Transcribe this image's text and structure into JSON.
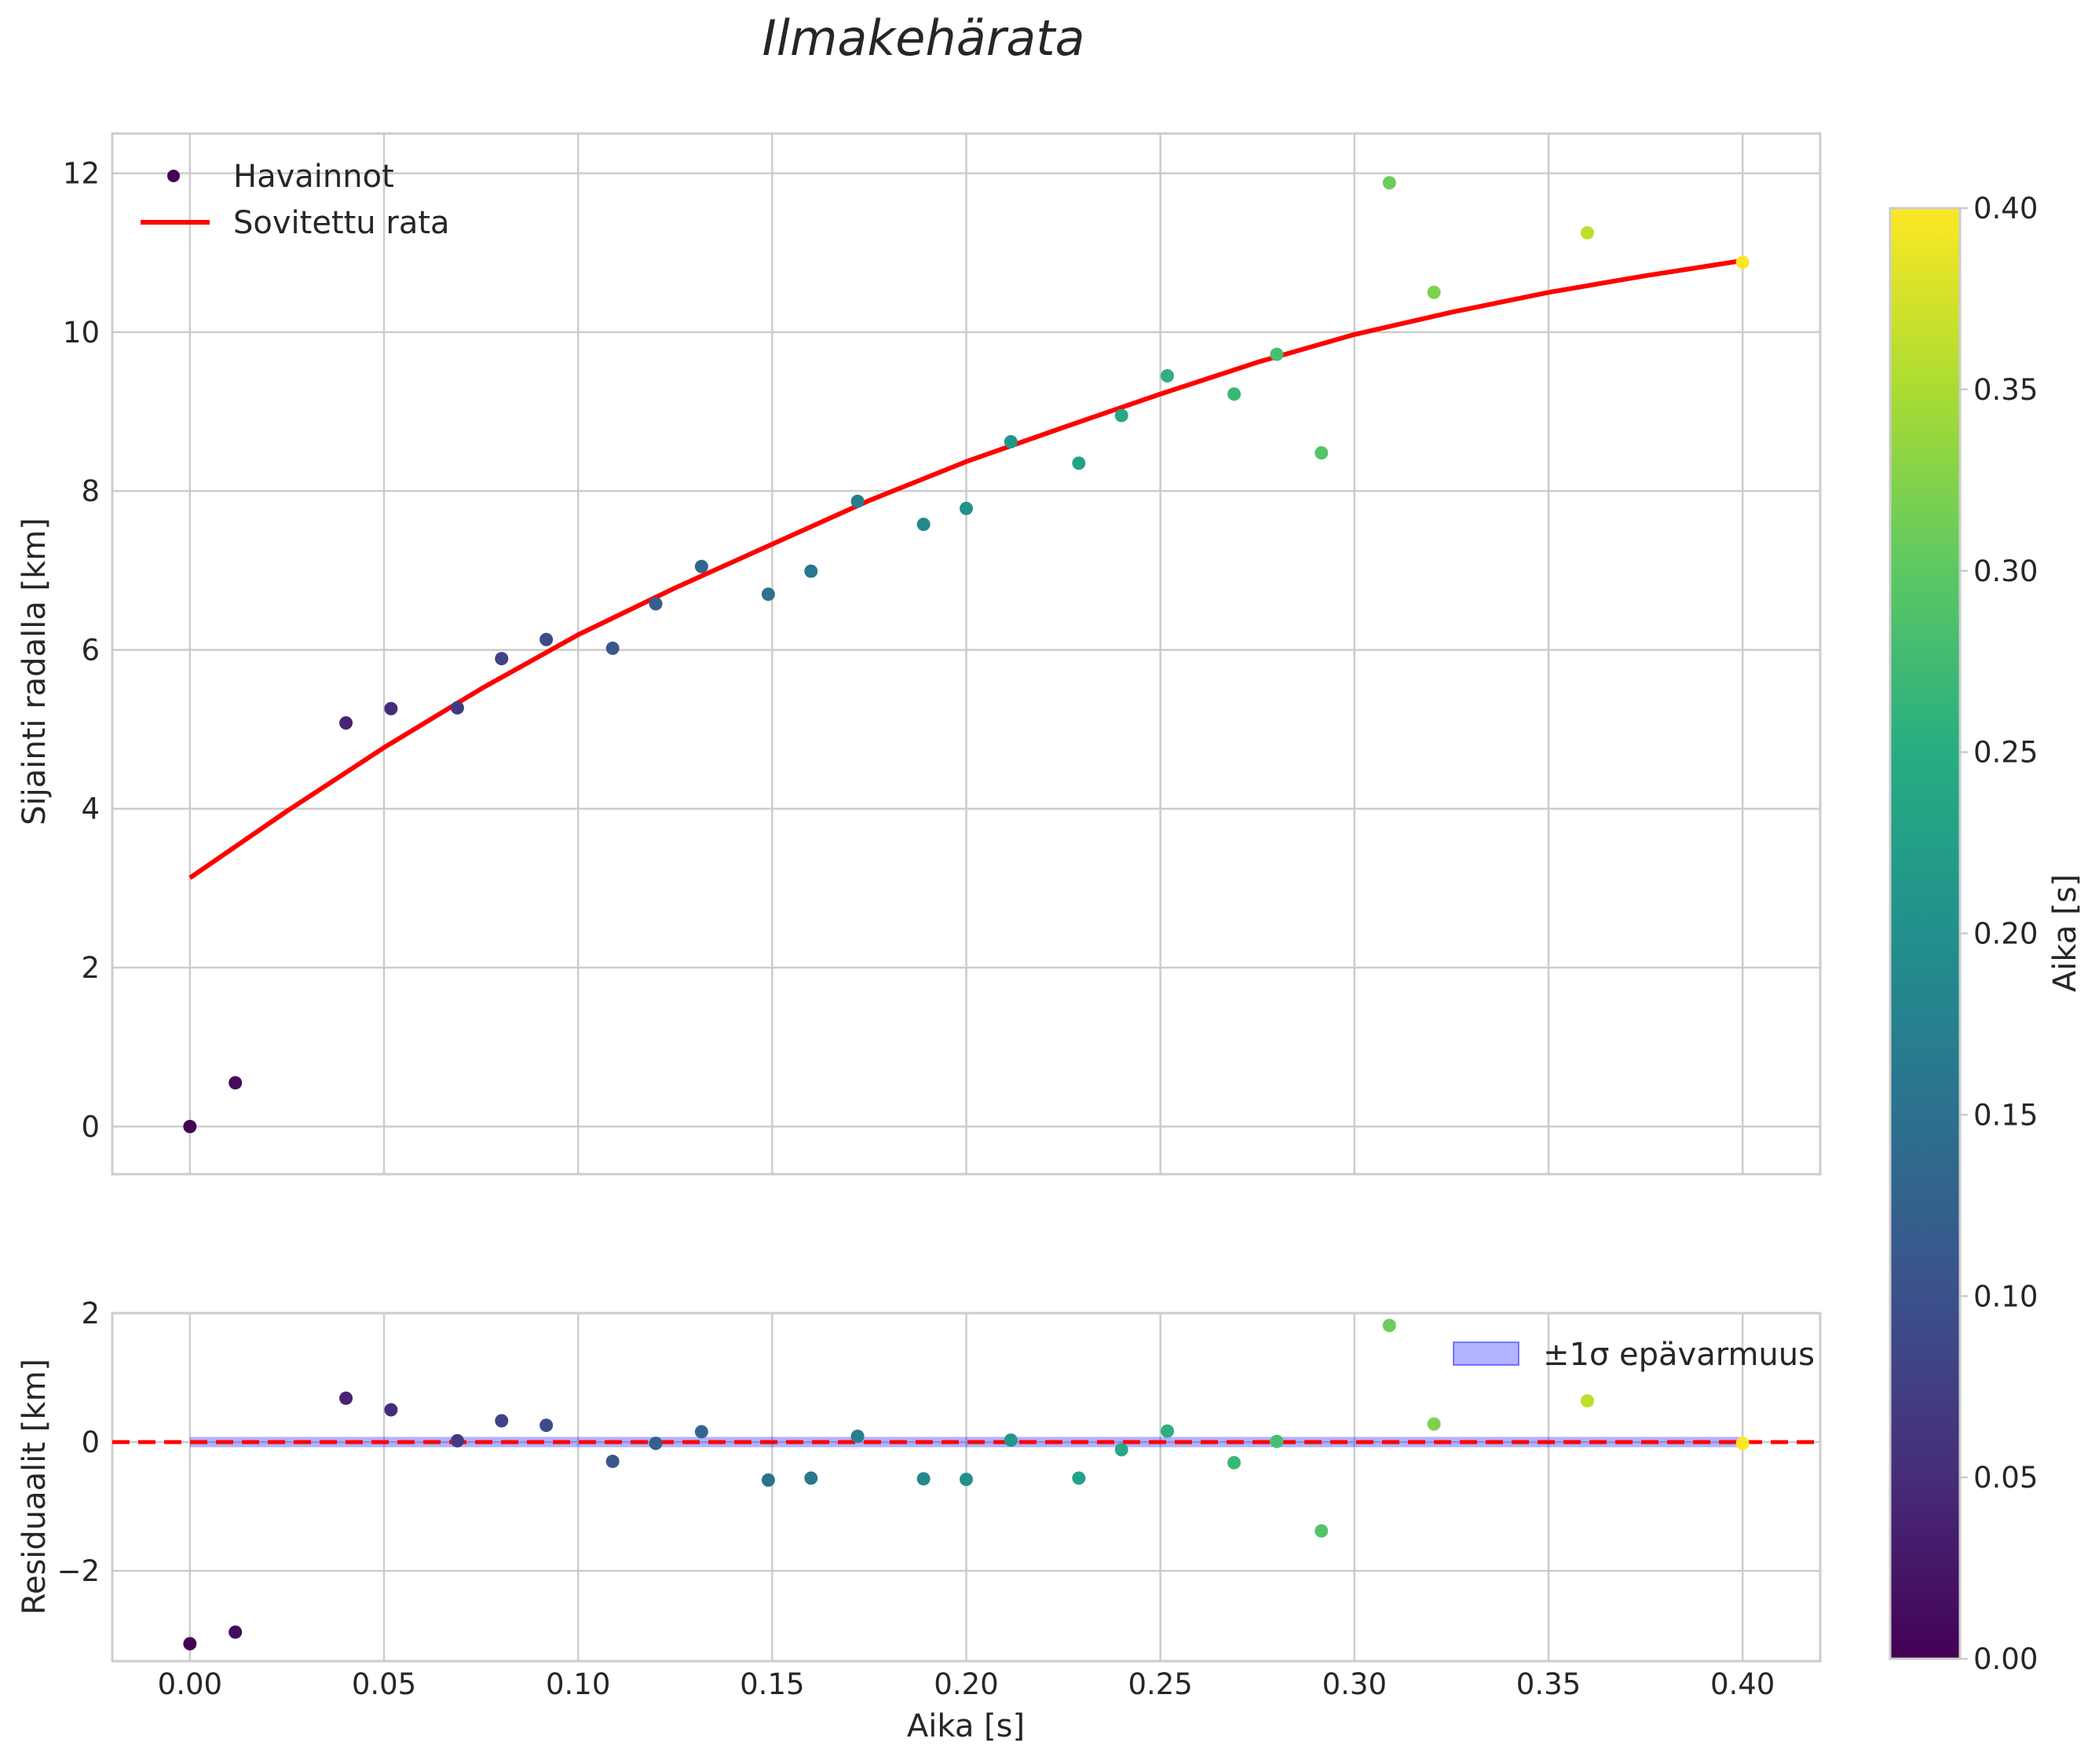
{
  "chart_data": [
    {
      "type": "scatter+line",
      "title": "Ilmakehärata",
      "xlabel": "",
      "ylabel": "Sijainti radalla [km]",
      "xlim": [
        -0.02,
        0.42
      ],
      "ylim": [
        -0.6,
        12.5
      ],
      "xticks": [
        0.0,
        0.05,
        0.1,
        0.15,
        0.2,
        0.25,
        0.3,
        0.35,
        0.4
      ],
      "yticks": [
        0,
        2,
        4,
        6,
        8,
        10,
        12
      ],
      "ytick_labels": [
        "0",
        "2",
        "4",
        "6",
        "8",
        "10",
        "12"
      ],
      "grid": true,
      "legend_position": "upper-left",
      "series": [
        {
          "name": "Havainnot",
          "kind": "scatter",
          "color_by": "x",
          "x": [
            0.0,
            0.0117,
            0.0402,
            0.0518,
            0.0689,
            0.0803,
            0.0918,
            0.1089,
            0.12,
            0.1318,
            0.149,
            0.16,
            0.172,
            0.189,
            0.2,
            0.2115,
            0.229,
            0.24,
            0.2518,
            0.269,
            0.28,
            0.2915,
            0.309,
            0.3205,
            0.36,
            0.4
          ],
          "y": [
            0.0,
            0.55,
            5.08,
            5.26,
            5.27,
            5.89,
            6.13,
            6.02,
            6.58,
            7.05,
            6.7,
            6.99,
            7.87,
            7.58,
            7.78,
            8.62,
            8.35,
            8.95,
            9.45,
            9.22,
            9.72,
            8.48,
            11.88,
            10.5,
            11.25,
            10.88
          ]
        },
        {
          "name": "Sovitettu rata",
          "kind": "line",
          "color": "#ff0000",
          "x": [
            0.0,
            0.025,
            0.05,
            0.075,
            0.1,
            0.125,
            0.15,
            0.175,
            0.2,
            0.225,
            0.25,
            0.275,
            0.3,
            0.325,
            0.35,
            0.375,
            0.4
          ],
          "y": [
            3.13,
            3.97,
            4.77,
            5.51,
            6.19,
            6.78,
            7.33,
            7.88,
            8.37,
            8.8,
            9.22,
            9.62,
            9.97,
            10.25,
            10.5,
            10.71,
            10.9
          ]
        }
      ]
    },
    {
      "type": "scatter",
      "title": "",
      "xlabel": "Aika [s]",
      "ylabel": "Residuaalit [km]",
      "xlim": [
        -0.02,
        0.42
      ],
      "ylim": [
        -3.4,
        2.0
      ],
      "xticks": [
        0.0,
        0.05,
        0.1,
        0.15,
        0.2,
        0.25,
        0.3,
        0.35,
        0.4
      ],
      "xtick_labels": [
        "0.00",
        "0.05",
        "0.10",
        "0.15",
        "0.20",
        "0.25",
        "0.30",
        "0.35",
        "0.40"
      ],
      "yticks": [
        -2,
        0,
        2
      ],
      "ytick_labels": [
        "−2",
        "0",
        "2"
      ],
      "grid": true,
      "legend_position": "upper-right",
      "series": [
        {
          "name": "Residuaalit",
          "kind": "scatter",
          "color_by": "x",
          "x": [
            0.0,
            0.0117,
            0.0402,
            0.0518,
            0.0689,
            0.0803,
            0.0918,
            0.1089,
            0.12,
            0.1318,
            0.149,
            0.16,
            0.172,
            0.189,
            0.2,
            0.2115,
            0.229,
            0.24,
            0.2518,
            0.269,
            0.28,
            0.2915,
            0.309,
            0.3205,
            0.36,
            0.4
          ],
          "y": [
            -3.13,
            -2.95,
            0.68,
            0.5,
            0.02,
            0.33,
            0.26,
            -0.3,
            -0.02,
            0.16,
            -0.59,
            -0.56,
            0.09,
            -0.57,
            -0.58,
            0.03,
            -0.56,
            -0.12,
            0.17,
            -0.32,
            0.01,
            -1.38,
            1.81,
            0.28,
            0.64,
            -0.02
          ]
        },
        {
          "name": "±1σ epävarmuus",
          "kind": "band",
          "color": "#0000ff",
          "x": [
            0.0,
            0.4
          ],
          "lower": [
            -0.08,
            -0.08
          ],
          "upper": [
            0.08,
            0.08
          ]
        },
        {
          "name": "zero line",
          "kind": "hline",
          "y": 0,
          "color": "#ff0000",
          "style": "dashed"
        }
      ]
    }
  ],
  "colorbar": {
    "label": "Aika [s]",
    "colormap": "viridis",
    "range": [
      0.0,
      0.4
    ],
    "ticks": [
      0.0,
      0.05,
      0.1,
      0.15,
      0.2,
      0.25,
      0.3,
      0.35,
      0.4
    ],
    "tick_labels": [
      "0.00",
      "0.05",
      "0.10",
      "0.15",
      "0.20",
      "0.25",
      "0.30",
      "0.35",
      "0.40"
    ]
  },
  "legend_top": {
    "items": [
      "Havainnot",
      "Sovitettu rata"
    ]
  },
  "legend_bottom": {
    "items": [
      "±1σ epävarmuus"
    ]
  }
}
